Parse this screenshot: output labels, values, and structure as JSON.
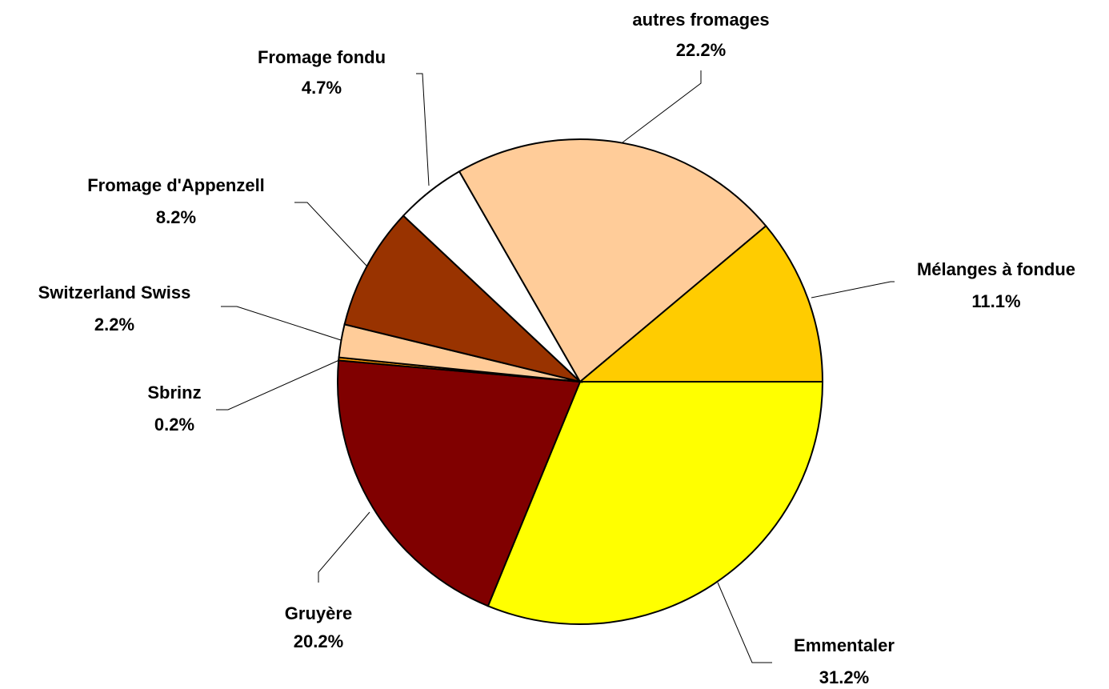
{
  "chart_data": {
    "type": "pie",
    "categories": [
      "Emmentaler",
      "Gruyère",
      "Sbrinz",
      "Switzerland Swiss",
      "Fromage d'Appenzell",
      "Fromage fondu",
      "autres fromages",
      "Mélanges à fondue"
    ],
    "values": [
      31.2,
      20.2,
      0.2,
      2.2,
      8.2,
      4.7,
      22.2,
      11.1
    ],
    "value_labels": [
      "31.2%",
      "20.2%",
      "0.2%",
      "2.2%",
      "8.2%",
      "4.7%",
      "22.2%",
      "11.1%"
    ],
    "colors": [
      "#ffff00",
      "#800000",
      "#ff9900",
      "#ffcc99",
      "#993300",
      "#ffffff",
      "#ffcc99",
      "#ffcc00"
    ]
  }
}
